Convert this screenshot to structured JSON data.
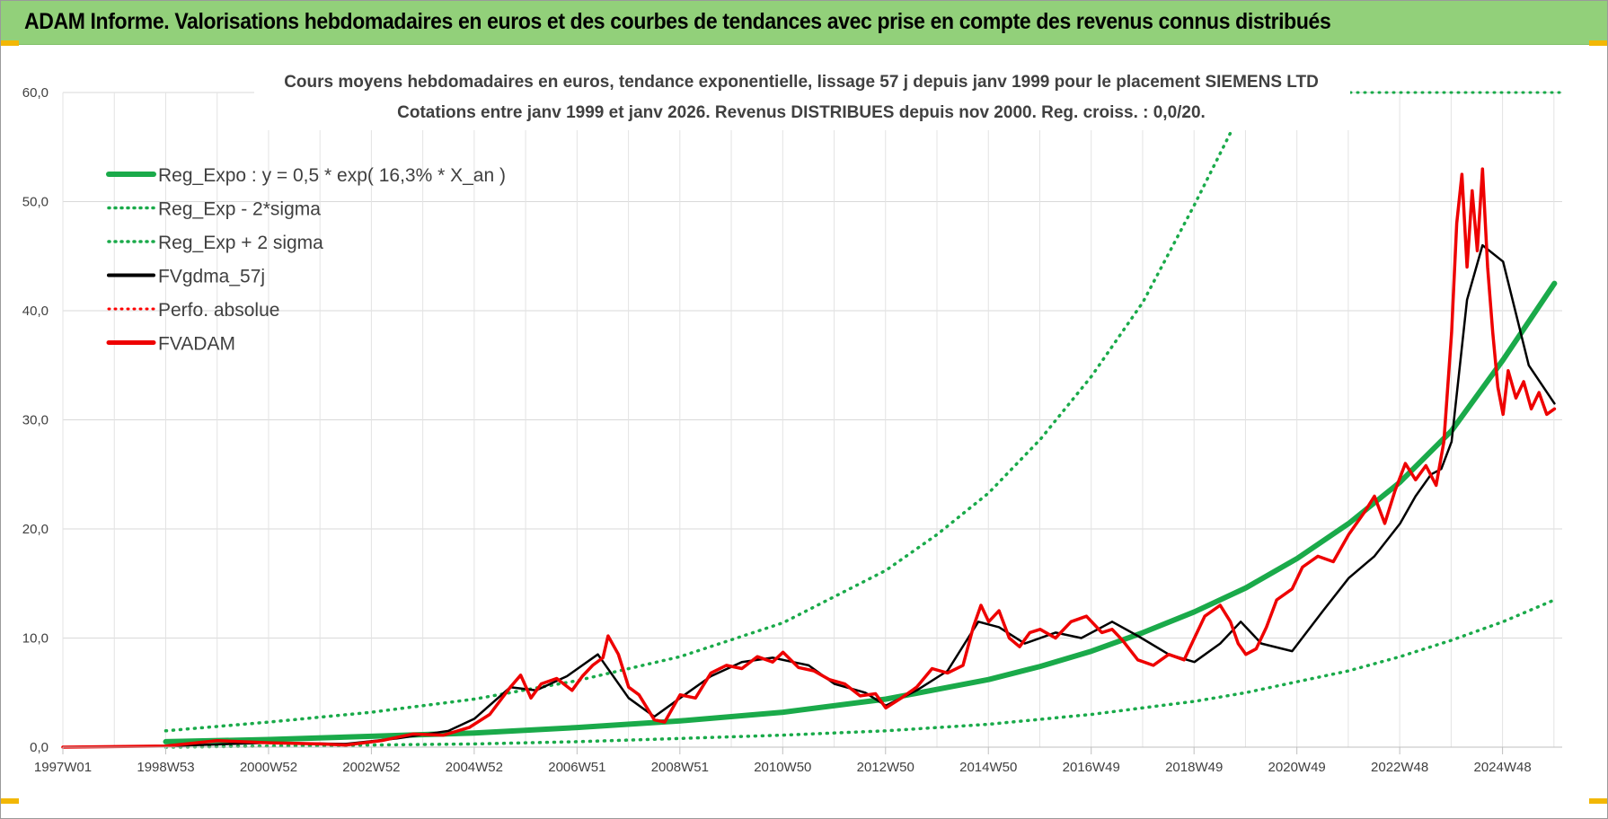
{
  "banner": {
    "title": "ADAM Informe. Valorisations hebdomadaires en euros et des courbes de tendances avec prise en compte des revenus connus distribués"
  },
  "colors": {
    "banner_bg": "#92d07a",
    "trend": "#1aaa4a",
    "band": "#1aaa4a",
    "smoothed": "#000000",
    "perf": "#ff0000",
    "adam": "#ee0000"
  },
  "chart_data": {
    "type": "line",
    "title": "Cours moyens hebdomadaires en euros, tendance exponentielle, lissage 57 j depuis janv 1999 pour le placement SIEMENS LTD",
    "subtitle": "Cotations entre janv 1999 et janv 2026. Revenus DISTRIBUES depuis nov 2000. Reg. croiss. : 0,0/20.",
    "x_tick_labels": [
      "1997W01",
      "1998W53",
      "2000W52",
      "2002W52",
      "2004W52",
      "2006W51",
      "2008W51",
      "2010W50",
      "2012W50",
      "2014W50",
      "2016W49",
      "2018W49",
      "2020W49",
      "2022W48",
      "2024W48"
    ],
    "y_tick_labels": [
      "0,0",
      "10,0",
      "20,0",
      "30,0",
      "40,0",
      "50,0",
      "60,0"
    ],
    "ylim": [
      0,
      60
    ],
    "xlim": [
      1997.0,
      2026.15
    ],
    "grid": true,
    "legend_position": "top-left",
    "legend": [
      {
        "label": "Reg_Expo : y = 0,5 * exp( 16,3% *  X_an )",
        "style": "solid",
        "color": "#1aaa4a"
      },
      {
        "label": "Reg_Exp - 2*sigma",
        "style": "dotted",
        "color": "#1aaa4a"
      },
      {
        "label": "Reg_Exp + 2 sigma",
        "style": "dotted",
        "color": "#1aaa4a"
      },
      {
        "label": "FVgdma_57j",
        "style": "solid",
        "color": "#000000"
      },
      {
        "label": "Perfo. absolue",
        "style": "dotted",
        "color": "#ff0000"
      },
      {
        "label": "FVADAM",
        "style": "solid",
        "color": "#ee0000"
      }
    ],
    "series": [
      {
        "name": "Reg_Expo : y = 0,5 * exp( 16,3% *  X_an )",
        "x": [
          1999.0,
          2001.0,
          2003.0,
          2005.0,
          2007.0,
          2009.0,
          2011.0,
          2013.0,
          2015.0,
          2016.0,
          2017.0,
          2018.0,
          2019.0,
          2020.0,
          2021.0,
          2022.0,
          2023.0,
          2024.0,
          2025.0,
          2026.0
        ],
        "y": [
          0.5,
          0.7,
          1.0,
          1.3,
          1.8,
          2.4,
          3.2,
          4.4,
          6.2,
          7.4,
          8.8,
          10.5,
          12.4,
          14.6,
          17.3,
          20.5,
          24.3,
          29.0,
          35.5,
          42.5
        ]
      },
      {
        "name": "Reg_Exp - 2*sigma",
        "x": [
          1999.0,
          2001.0,
          2003.0,
          2005.0,
          2007.0,
          2009.0,
          2011.0,
          2013.0,
          2015.0,
          2017.0,
          2019.0,
          2020.0,
          2021.0,
          2022.0,
          2023.0,
          2024.0,
          2025.0,
          2026.0
        ],
        "y": [
          0.0,
          0.1,
          0.2,
          0.3,
          0.5,
          0.8,
          1.1,
          1.5,
          2.1,
          3.0,
          4.2,
          5.0,
          6.0,
          7.0,
          8.3,
          9.8,
          11.5,
          13.5
        ]
      },
      {
        "name": "Reg_Exp + 2 sigma",
        "x": [
          1999.0,
          2001.0,
          2003.0,
          2005.0,
          2007.0,
          2009.0,
          2011.0,
          2013.0,
          2014.0,
          2015.0,
          2016.0,
          2017.0,
          2018.0,
          2019.0,
          2019.7
        ],
        "y": [
          1.5,
          2.3,
          3.2,
          4.4,
          6.1,
          8.3,
          11.4,
          16.2,
          19.5,
          23.3,
          28.2,
          34.0,
          40.8,
          49.7,
          56.3
        ]
      },
      {
        "name": "FVgdma_57j",
        "x": [
          1997.0,
          1999.0,
          2001.0,
          2002.5,
          2003.5,
          2004.5,
          2005.0,
          2005.7,
          2006.2,
          2006.8,
          2007.4,
          2008.0,
          2008.5,
          2009.0,
          2009.6,
          2010.2,
          2010.8,
          2011.5,
          2012.0,
          2012.6,
          2013.0,
          2013.6,
          2014.2,
          2014.8,
          2015.2,
          2015.7,
          2016.3,
          2016.8,
          2017.4,
          2017.9,
          2018.5,
          2019.0,
          2019.5,
          2019.9,
          2020.3,
          2020.9,
          2021.5,
          2022.0,
          2022.5,
          2023.0,
          2023.3,
          2023.6,
          2023.8,
          2024.0,
          2024.3,
          2024.6,
          2025.0,
          2025.5,
          2026.0
        ],
        "y": [
          0.0,
          0.1,
          0.4,
          0.3,
          0.8,
          1.5,
          2.6,
          5.5,
          5.2,
          6.5,
          8.5,
          4.5,
          2.8,
          4.5,
          6.5,
          7.8,
          8.2,
          7.5,
          5.8,
          5.0,
          3.8,
          5.2,
          7.0,
          11.5,
          11.0,
          9.5,
          10.5,
          10.0,
          11.5,
          10.2,
          8.5,
          7.8,
          9.5,
          11.5,
          9.5,
          8.8,
          12.5,
          15.5,
          17.5,
          20.5,
          23.0,
          25.0,
          25.5,
          28.0,
          41.0,
          46.0,
          44.5,
          35.0,
          31.5
        ]
      },
      {
        "name": "FVADAM",
        "x": [
          1997.0,
          1999.0,
          2000.0,
          2001.0,
          2002.0,
          2002.5,
          2003.2,
          2003.8,
          2004.4,
          2004.9,
          2005.3,
          2005.7,
          2005.9,
          2006.1,
          2006.3,
          2006.6,
          2006.9,
          2007.1,
          2007.3,
          2007.5,
          2007.6,
          2007.8,
          2008.0,
          2008.2,
          2008.5,
          2008.7,
          2009.0,
          2009.3,
          2009.6,
          2009.9,
          2010.2,
          2010.5,
          2010.8,
          2011.0,
          2011.3,
          2011.6,
          2011.9,
          2012.2,
          2012.5,
          2012.8,
          2013.0,
          2013.3,
          2013.6,
          2013.9,
          2014.2,
          2014.5,
          2014.7,
          2014.85,
          2015.0,
          2015.2,
          2015.4,
          2015.6,
          2015.8,
          2016.0,
          2016.3,
          2016.6,
          2016.9,
          2017.2,
          2017.4,
          2017.6,
          2017.9,
          2018.2,
          2018.5,
          2018.8,
          2019.0,
          2019.2,
          2019.5,
          2019.7,
          2019.85,
          2020.0,
          2020.2,
          2020.4,
          2020.6,
          2020.9,
          2021.1,
          2021.4,
          2021.7,
          2022.0,
          2022.3,
          2022.5,
          2022.7,
          2022.9,
          2023.1,
          2023.3,
          2023.5,
          2023.7,
          2023.85,
          2024.0,
          2024.1,
          2024.2,
          2024.3,
          2024.4,
          2024.5,
          2024.6,
          2024.7,
          2024.8,
          2024.9,
          2025.0,
          2025.1,
          2025.25,
          2025.4,
          2025.55,
          2025.7,
          2025.85,
          2026.0
        ],
        "y": [
          0.0,
          0.1,
          0.6,
          0.4,
          0.3,
          0.2,
          0.6,
          1.2,
          1.1,
          1.8,
          3.0,
          5.5,
          6.6,
          4.5,
          5.8,
          6.3,
          5.2,
          6.5,
          7.5,
          8.2,
          10.2,
          8.5,
          5.5,
          4.8,
          2.5,
          2.3,
          4.8,
          4.5,
          6.8,
          7.5,
          7.2,
          8.3,
          7.8,
          8.7,
          7.3,
          7.0,
          6.2,
          5.8,
          4.7,
          4.9,
          3.6,
          4.5,
          5.5,
          7.2,
          6.8,
          7.5,
          11.0,
          13.0,
          11.5,
          12.5,
          10.0,
          9.2,
          10.5,
          10.8,
          10.0,
          11.5,
          12.0,
          10.5,
          10.8,
          9.8,
          8.0,
          7.5,
          8.5,
          8.0,
          10.0,
          12.0,
          13.0,
          11.5,
          9.5,
          8.5,
          9.0,
          11.0,
          13.5,
          14.5,
          16.5,
          17.5,
          17.0,
          19.5,
          21.5,
          23.0,
          20.5,
          23.5,
          26.0,
          24.5,
          25.8,
          24.0,
          28.0,
          38.0,
          48.0,
          52.5,
          44.0,
          51.0,
          45.5,
          53.0,
          44.0,
          38.0,
          33.0,
          30.5,
          34.5,
          32.0,
          33.5,
          31.0,
          32.5,
          30.5,
          31.0
        ]
      }
    ]
  }
}
